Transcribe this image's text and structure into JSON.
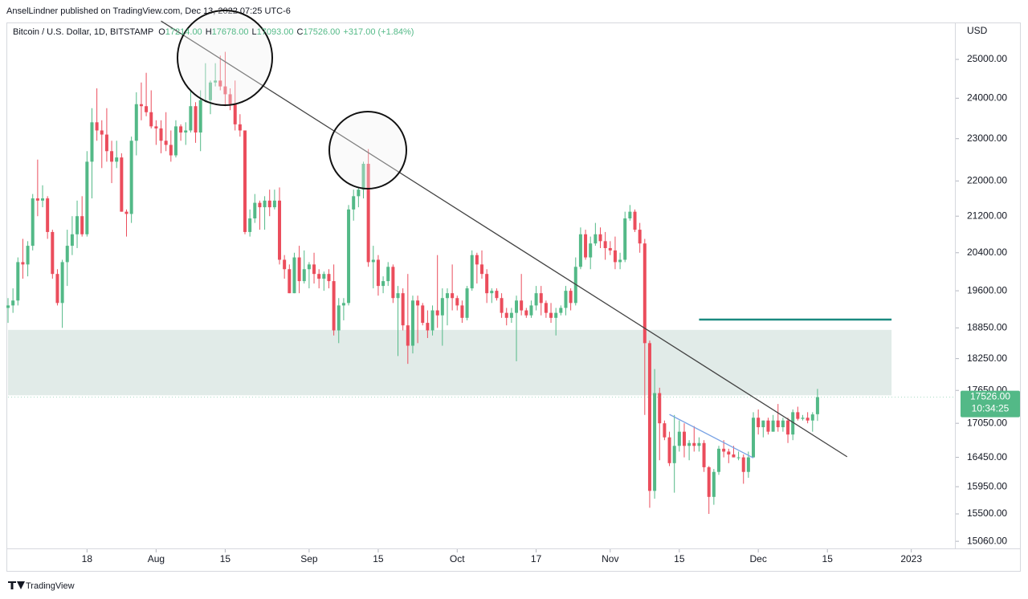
{
  "header": "AnselLindner published on TradingView.com, Dec 13, 2022 07:25 UTC-6",
  "footer": "TradingView",
  "chart_data": {
    "type": "candlestick",
    "symbol": "Bitcoin / U.S. Dollar, 1D, BITSTAMP",
    "legend": [
      {
        "key": "O",
        "value": "17214.00"
      },
      {
        "key": "H",
        "value": "17678.00"
      },
      {
        "key": "L",
        "value": "17093.00"
      },
      {
        "key": "C",
        "value": "17526.00"
      }
    ],
    "change": "+317.00 (+1.84%)",
    "y_label": "USD",
    "price_label": {
      "value": 17526,
      "label": "17526.00"
    },
    "countdown": "10:34:25",
    "log": true,
    "grid": false,
    "up_color": "#53b987",
    "down_color": "#eb4d5c",
    "xlim": [
      "2022-07-02",
      "2023-01-10"
    ],
    "ylim": [
      14935,
      25990
    ],
    "yticks": [
      {
        "value": 25000,
        "label": "25000.00"
      },
      {
        "value": 24000,
        "label": "24000.00"
      },
      {
        "value": 23000,
        "label": "23000.00"
      },
      {
        "value": 22000,
        "label": "22000.00"
      },
      {
        "value": 21200,
        "label": "21200.00"
      },
      {
        "value": 20400,
        "label": "20400.00"
      },
      {
        "value": 19600,
        "label": "19600.00"
      },
      {
        "value": 18850,
        "label": "18850.00"
      },
      {
        "value": 18250,
        "label": "18250.00"
      },
      {
        "value": 17650,
        "label": "17650.00"
      },
      {
        "value": 17050,
        "label": "17050.00"
      },
      {
        "value": 16450,
        "label": "16450.00"
      },
      {
        "value": 15950,
        "label": "15950.00"
      },
      {
        "value": 15500,
        "label": "15500.00"
      },
      {
        "value": 15060,
        "label": "15060.00"
      }
    ],
    "xticks": [
      {
        "value": "2022-07-18",
        "label": "18"
      },
      {
        "value": "2022-08-01",
        "label": "Aug"
      },
      {
        "value": "2022-08-15",
        "label": "15"
      },
      {
        "value": "2022-09-01",
        "label": "Sep"
      },
      {
        "value": "2022-09-15",
        "label": "15"
      },
      {
        "value": "2022-10-01",
        "label": "Oct"
      },
      {
        "value": "2022-10-17",
        "label": "17"
      },
      {
        "value": "2022-11-01",
        "label": "Nov"
      },
      {
        "value": "2022-11-15",
        "label": "15"
      },
      {
        "value": "2022-12-01",
        "label": "Dec"
      },
      {
        "value": "2022-12-15",
        "label": "15"
      },
      {
        "value": "2023-01-01",
        "label": "2023"
      }
    ],
    "zone": {
      "from": "2022-07-02",
      "to": "2022-12-28",
      "low": 17560,
      "high": 18810,
      "color": "#e1ebe8"
    },
    "lines": [
      {
        "from": "2022-08-02",
        "to": "2022-12-19",
        "start": 26030,
        "end": 16460,
        "color": "#444444"
      },
      {
        "from": "2022-11-19",
        "to": "2022-12-28",
        "start": 19015,
        "end": 19015,
        "color": "#1a8a80"
      },
      {
        "from": "2022-11-13",
        "to": "2022-11-30",
        "start": 17210,
        "end": 16440,
        "color": "#7aa3e5"
      }
    ],
    "x": [
      "2022-07-02",
      "2022-07-03",
      "2022-07-04",
      "2022-07-05",
      "2022-07-06",
      "2022-07-07",
      "2022-07-08",
      "2022-07-09",
      "2022-07-10",
      "2022-07-11",
      "2022-07-12",
      "2022-07-13",
      "2022-07-14",
      "2022-07-15",
      "2022-07-16",
      "2022-07-17",
      "2022-07-18",
      "2022-07-19",
      "2022-07-20",
      "2022-07-21",
      "2022-07-22",
      "2022-07-23",
      "2022-07-24",
      "2022-07-25",
      "2022-07-26",
      "2022-07-27",
      "2022-07-28",
      "2022-07-29",
      "2022-07-30",
      "2022-07-31",
      "2022-08-01",
      "2022-08-02",
      "2022-08-03",
      "2022-08-04",
      "2022-08-05",
      "2022-08-06",
      "2022-08-07",
      "2022-08-08",
      "2022-08-09",
      "2022-08-10",
      "2022-08-11",
      "2022-08-12",
      "2022-08-13",
      "2022-08-14",
      "2022-08-15",
      "2022-08-16",
      "2022-08-17",
      "2022-08-18",
      "2022-08-19",
      "2022-08-20",
      "2022-08-21",
      "2022-08-22",
      "2022-08-23",
      "2022-08-24",
      "2022-08-25",
      "2022-08-26",
      "2022-08-27",
      "2022-08-28",
      "2022-08-29",
      "2022-08-30",
      "2022-08-31",
      "2022-09-01",
      "2022-09-02",
      "2022-09-03",
      "2022-09-04",
      "2022-09-05",
      "2022-09-06",
      "2022-09-07",
      "2022-09-08",
      "2022-09-09",
      "2022-09-10",
      "2022-09-11",
      "2022-09-12",
      "2022-09-13",
      "2022-09-14",
      "2022-09-15",
      "2022-09-16",
      "2022-09-17",
      "2022-09-18",
      "2022-09-19",
      "2022-09-20",
      "2022-09-21",
      "2022-09-22",
      "2022-09-23",
      "2022-09-24",
      "2022-09-25",
      "2022-09-26",
      "2022-09-27",
      "2022-09-28",
      "2022-09-29",
      "2022-09-30",
      "2022-10-01",
      "2022-10-02",
      "2022-10-03",
      "2022-10-04",
      "2022-10-05",
      "2022-10-06",
      "2022-10-07",
      "2022-10-08",
      "2022-10-09",
      "2022-10-10",
      "2022-10-11",
      "2022-10-12",
      "2022-10-13",
      "2022-10-14",
      "2022-10-15",
      "2022-10-16",
      "2022-10-17",
      "2022-10-18",
      "2022-10-19",
      "2022-10-20",
      "2022-10-21",
      "2022-10-22",
      "2022-10-23",
      "2022-10-24",
      "2022-10-25",
      "2022-10-26",
      "2022-10-27",
      "2022-10-28",
      "2022-10-29",
      "2022-10-30",
      "2022-10-31",
      "2022-11-01",
      "2022-11-02",
      "2022-11-03",
      "2022-11-04",
      "2022-11-05",
      "2022-11-06",
      "2022-11-07",
      "2022-11-08",
      "2022-11-09",
      "2022-11-10",
      "2022-11-11",
      "2022-11-12",
      "2022-11-13",
      "2022-11-14",
      "2022-11-15",
      "2022-11-16",
      "2022-11-17",
      "2022-11-18",
      "2022-11-19",
      "2022-11-20",
      "2022-11-21",
      "2022-11-22",
      "2022-11-23",
      "2022-11-24",
      "2022-11-25",
      "2022-11-26",
      "2022-11-27",
      "2022-11-28",
      "2022-11-29",
      "2022-11-30",
      "2022-12-01",
      "2022-12-02",
      "2022-12-03",
      "2022-12-04",
      "2022-12-05",
      "2022-12-06",
      "2022-12-07",
      "2022-12-08",
      "2022-12-09",
      "2022-12-10",
      "2022-12-11",
      "2022-12-12",
      "2022-12-13"
    ],
    "ohlc": [
      [
        19250,
        19450,
        18950,
        19300
      ],
      [
        19300,
        19650,
        19150,
        19400
      ],
      [
        19400,
        20300,
        19300,
        20200
      ],
      [
        20200,
        20700,
        19850,
        20150
      ],
      [
        20150,
        20650,
        19900,
        20550
      ],
      [
        20550,
        21700,
        20450,
        21600
      ],
      [
        21600,
        22500,
        21200,
        21550
      ],
      [
        21550,
        21900,
        21400,
        21600
      ],
      [
        21600,
        21650,
        20700,
        20850
      ],
      [
        20850,
        20900,
        19850,
        19950
      ],
      [
        19950,
        20050,
        19300,
        19350
      ],
      [
        19350,
        20250,
        18850,
        20200
      ],
      [
        20200,
        20900,
        19700,
        20550
      ],
      [
        20550,
        21200,
        20350,
        20800
      ],
      [
        20800,
        21550,
        20500,
        21200
      ],
      [
        21200,
        21650,
        20750,
        20800
      ],
      [
        20800,
        22700,
        20750,
        22450
      ],
      [
        22450,
        23750,
        21600,
        23400
      ],
      [
        23400,
        24250,
        22950,
        23200
      ],
      [
        23200,
        23450,
        22300,
        23100
      ],
      [
        23100,
        23750,
        22450,
        22700
      ],
      [
        22700,
        22950,
        21950,
        22450
      ],
      [
        22450,
        22950,
        22300,
        22550
      ],
      [
        22550,
        22650,
        21300,
        21300
      ],
      [
        21300,
        21350,
        20750,
        21250
      ],
      [
        21250,
        23050,
        21050,
        22950
      ],
      [
        22950,
        24150,
        22600,
        23850
      ],
      [
        23850,
        24400,
        23450,
        23800
      ],
      [
        23800,
        24650,
        23550,
        23650
      ],
      [
        23650,
        24200,
        23250,
        23300
      ],
      [
        23300,
        23450,
        22850,
        23250
      ],
      [
        23250,
        23450,
        22650,
        22950
      ],
      [
        22950,
        23650,
        22700,
        22850
      ],
      [
        22850,
        23200,
        22450,
        22600
      ],
      [
        22600,
        23450,
        22550,
        23300
      ],
      [
        23300,
        23350,
        22950,
        23150
      ],
      [
        23150,
        23400,
        22850,
        23200
      ],
      [
        23200,
        24200,
        23150,
        23800
      ],
      [
        23800,
        23900,
        22900,
        23150
      ],
      [
        23150,
        24200,
        22700,
        23950
      ],
      [
        23950,
        24900,
        23900,
        23950
      ],
      [
        23950,
        24450,
        23600,
        24400
      ],
      [
        24400,
        24900,
        24300,
        24450
      ],
      [
        24450,
        25100,
        24200,
        24300
      ],
      [
        24300,
        25200,
        23800,
        24100
      ],
      [
        24100,
        24250,
        23700,
        23850
      ],
      [
        23850,
        24450,
        23200,
        23350
      ],
      [
        23350,
        23600,
        23050,
        23200
      ],
      [
        23200,
        23200,
        20800,
        20850
      ],
      [
        20850,
        21350,
        20750,
        21150
      ],
      [
        21150,
        21700,
        21050,
        21500
      ],
      [
        21500,
        21550,
        20900,
        21400
      ],
      [
        21400,
        21650,
        20900,
        21550
      ],
      [
        21550,
        21800,
        21200,
        21400
      ],
      [
        21400,
        21800,
        21350,
        21550
      ],
      [
        21550,
        21850,
        20150,
        20250
      ],
      [
        20250,
        20350,
        19850,
        20050
      ],
      [
        20050,
        20150,
        19550,
        19550
      ],
      [
        19550,
        20400,
        19550,
        20300
      ],
      [
        20300,
        20550,
        19550,
        19800
      ],
      [
        19800,
        20450,
        19750,
        20050
      ],
      [
        20050,
        20200,
        19650,
        20150
      ],
      [
        20150,
        20400,
        19750,
        19950
      ],
      [
        19950,
        20050,
        19650,
        19850
      ],
      [
        19850,
        20000,
        19600,
        19950
      ],
      [
        19950,
        20050,
        19650,
        19800
      ],
      [
        19800,
        20150,
        18700,
        18800
      ],
      [
        18800,
        19450,
        18550,
        19300
      ],
      [
        19300,
        19450,
        19000,
        19350
      ],
      [
        19350,
        21450,
        19300,
        21350
      ],
      [
        21350,
        21800,
        21100,
        21650
      ],
      [
        21650,
        21850,
        21400,
        21800
      ],
      [
        21800,
        22450,
        21600,
        22400
      ],
      [
        22400,
        22750,
        20100,
        20200
      ],
      [
        20200,
        20550,
        19650,
        20250
      ],
      [
        20250,
        20350,
        19500,
        19700
      ],
      [
        19700,
        19900,
        19550,
        19800
      ],
      [
        19800,
        20200,
        19700,
        20100
      ],
      [
        20100,
        20150,
        19350,
        19450
      ],
      [
        19450,
        19700,
        18300,
        19550
      ],
      [
        19550,
        19650,
        18800,
        18900
      ],
      [
        18900,
        19950,
        18150,
        18500
      ],
      [
        18500,
        19500,
        18350,
        19400
      ],
      [
        19400,
        19500,
        18550,
        19300
      ],
      [
        19300,
        19350,
        18900,
        18950
      ],
      [
        18950,
        19200,
        18650,
        18800
      ],
      [
        18800,
        19300,
        18700,
        19200
      ],
      [
        19200,
        20350,
        18850,
        19100
      ],
      [
        19100,
        19650,
        18500,
        19450
      ],
      [
        19450,
        19650,
        18900,
        19550
      ],
      [
        19550,
        20150,
        19200,
        19450
      ],
      [
        19450,
        19500,
        19200,
        19300
      ],
      [
        19300,
        19400,
        18950,
        19050
      ],
      [
        19050,
        19700,
        19000,
        19650
      ],
      [
        19650,
        20450,
        19600,
        20350
      ],
      [
        20350,
        20400,
        19750,
        20150
      ],
      [
        20150,
        20450,
        19850,
        19950
      ],
      [
        19950,
        20050,
        19350,
        19550
      ],
      [
        19550,
        19650,
        19350,
        19600
      ],
      [
        19600,
        19650,
        19400,
        19450
      ],
      [
        19450,
        19550,
        19050,
        19150
      ],
      [
        19150,
        19250,
        18900,
        19050
      ],
      [
        19050,
        19250,
        18950,
        19150
      ],
      [
        19150,
        19500,
        18200,
        19400
      ],
      [
        19400,
        19950,
        19100,
        19200
      ],
      [
        19200,
        19250,
        19050,
        19100
      ],
      [
        19100,
        19400,
        19050,
        19300
      ],
      [
        19300,
        19700,
        19200,
        19550
      ],
      [
        19550,
        19700,
        19100,
        19350
      ],
      [
        19350,
        19400,
        19050,
        19150
      ],
      [
        19150,
        19350,
        18950,
        19050
      ],
      [
        19050,
        19250,
        18700,
        19150
      ],
      [
        19150,
        19300,
        19100,
        19250
      ],
      [
        19250,
        19700,
        19100,
        19600
      ],
      [
        19600,
        19650,
        19200,
        19350
      ],
      [
        19350,
        20300,
        19300,
        20100
      ],
      [
        20100,
        20950,
        20050,
        20800
      ],
      [
        20800,
        20900,
        20250,
        20300
      ],
      [
        20300,
        20750,
        20050,
        20600
      ],
      [
        20600,
        21050,
        20550,
        20800
      ],
      [
        20800,
        20950,
        20500,
        20650
      ],
      [
        20650,
        20850,
        20250,
        20500
      ],
      [
        20500,
        20650,
        20350,
        20450
      ],
      [
        20450,
        20750,
        20050,
        20200
      ],
      [
        20200,
        20400,
        20050,
        20250
      ],
      [
        20250,
        21300,
        20200,
        21150
      ],
      [
        21150,
        21450,
        21100,
        21300
      ],
      [
        21300,
        21350,
        20850,
        20900
      ],
      [
        20900,
        21050,
        20400,
        20600
      ],
      [
        20600,
        20700,
        17200,
        18550
      ],
      [
        18550,
        18600,
        15600,
        15880
      ],
      [
        15880,
        18050,
        15750,
        17600
      ],
      [
        17600,
        17700,
        16400,
        17050
      ],
      [
        17050,
        17100,
        16750,
        16800
      ],
      [
        16800,
        16900,
        16300,
        16350
      ],
      [
        16350,
        17200,
        15850,
        16650
      ],
      [
        16650,
        17100,
        16550,
        16900
      ],
      [
        16900,
        17050,
        16450,
        16650
      ],
      [
        16650,
        16750,
        16400,
        16700
      ],
      [
        16700,
        17000,
        16550,
        16650
      ],
      [
        16650,
        16800,
        16550,
        16700
      ],
      [
        16700,
        16750,
        16200,
        16280
      ],
      [
        16280,
        16300,
        15500,
        15780
      ],
      [
        15780,
        16250,
        15650,
        16200
      ],
      [
        16200,
        16650,
        16150,
        16600
      ],
      [
        16600,
        16750,
        16450,
        16550
      ],
      [
        16550,
        16600,
        16350,
        16500
      ],
      [
        16500,
        16650,
        16450,
        16450
      ],
      [
        16450,
        16550,
        16400,
        16450
      ],
      [
        16450,
        16500,
        16000,
        16200
      ],
      [
        16200,
        16550,
        16100,
        16450
      ],
      [
        16450,
        17250,
        16450,
        17150
      ],
      [
        17150,
        17300,
        16850,
        16980
      ],
      [
        16980,
        17100,
        16800,
        17100
      ],
      [
        17100,
        17150,
        16850,
        16900
      ],
      [
        16900,
        17200,
        16900,
        17100
      ],
      [
        17100,
        17400,
        16900,
        16980
      ],
      [
        16980,
        17150,
        16900,
        17100
      ],
      [
        17100,
        17150,
        16700,
        16850
      ],
      [
        16850,
        17300,
        16750,
        17250
      ],
      [
        17250,
        17350,
        17100,
        17130
      ],
      [
        17130,
        17200,
        17100,
        17150
      ],
      [
        17150,
        17250,
        17050,
        17100
      ],
      [
        17100,
        17250,
        16900,
        17210
      ],
      [
        17214,
        17678,
        17093,
        17526
      ]
    ]
  }
}
